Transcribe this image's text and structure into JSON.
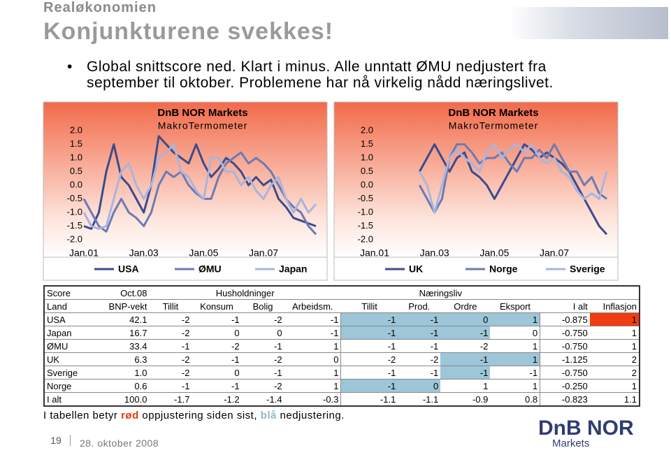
{
  "header": {
    "section": "Realøkonomien",
    "title": "Konjunkturene svekkes!"
  },
  "bullet": "Global snittscore ned. Klart i minus. Alle unntatt ØMU nedjustert fra september til oktober. Problemene har nå virkelig nådd næringslivet.",
  "chart_data": [
    {
      "type": "line",
      "title": "DnB NOR Markets",
      "subtitle": "MakroTermometer",
      "x": [
        "2001-01",
        "2001-04",
        "2001-07",
        "2001-10",
        "2002-01",
        "2002-04",
        "2002-07",
        "2002-10",
        "2003-01",
        "2003-04",
        "2003-07",
        "2003-10",
        "2004-01",
        "2004-04",
        "2004-07",
        "2004-10",
        "2005-01",
        "2005-04",
        "2005-07",
        "2005-10",
        "2006-01",
        "2006-04",
        "2006-07",
        "2006-10",
        "2007-01",
        "2007-04",
        "2007-07",
        "2007-10",
        "2008-01",
        "2008-04",
        "2008-07",
        "2008-10"
      ],
      "xlim": [
        "2001-01",
        "2008-10"
      ],
      "xticks": [
        {
          "value": "2001-01",
          "label": "Jan.01"
        },
        {
          "value": "2003-01",
          "label": "Jan.03"
        },
        {
          "value": "2005-01",
          "label": "Jan.05"
        },
        {
          "value": "2007-01",
          "label": "Jan.07"
        }
      ],
      "ylim": [
        -2,
        2
      ],
      "yticks": [
        {
          "value": -2,
          "label": "-2.0"
        },
        {
          "value": -1.5,
          "label": "-1.5"
        },
        {
          "value": -1,
          "label": "-1.0"
        },
        {
          "value": -0.5,
          "label": "-0.5"
        },
        {
          "value": 0,
          "label": "0.0"
        },
        {
          "value": 0.5,
          "label": "0.5"
        },
        {
          "value": 1,
          "label": "1.0"
        },
        {
          "value": 1.5,
          "label": "1.5"
        },
        {
          "value": 2,
          "label": "2.0"
        }
      ],
      "series": [
        {
          "name": "USA",
          "color": "#3b4c8c",
          "values": [
            -1.5,
            -1.6,
            -1.0,
            0.5,
            1.5,
            0.3,
            0.0,
            -0.5,
            -1.0,
            0.0,
            1.8,
            1.5,
            1.2,
            1.0,
            0.8,
            1.5,
            0.8,
            0.3,
            0.6,
            1.0,
            0.8,
            0.5,
            0.0,
            0.3,
            0.0,
            0.2,
            -0.5,
            -0.8,
            -1.2,
            -1.3,
            -1.4,
            -1.5
          ]
        },
        {
          "name": "ØMU",
          "color": "#6b7bb5",
          "values": [
            -0.5,
            -1.0,
            -1.5,
            -1.7,
            -1.0,
            -0.5,
            -1.0,
            -1.2,
            -1.5,
            -1.0,
            0.0,
            0.5,
            0.3,
            0.5,
            0.0,
            -0.3,
            -0.5,
            -0.5,
            0.3,
            0.8,
            1.0,
            1.2,
            0.8,
            1.0,
            0.8,
            0.5,
            0.0,
            -0.5,
            -0.8,
            -1.0,
            -1.5,
            -1.8
          ]
        },
        {
          "name": "Japan",
          "color": "#aab4dc",
          "values": [
            -1.0,
            -1.5,
            -1.6,
            -1.5,
            -0.5,
            0.5,
            0.8,
            0.0,
            -0.5,
            0.0,
            1.0,
            1.2,
            1.5,
            0.5,
            0.3,
            -0.2,
            -0.5,
            1.0,
            1.0,
            0.5,
            0.5,
            0.0,
            0.3,
            -0.2,
            -0.5,
            0.0,
            0.3,
            -0.5,
            -1.0,
            -0.5,
            -1.0,
            -0.7
          ]
        }
      ]
    },
    {
      "type": "line",
      "title": "DnB NOR Markets",
      "subtitle": "MakroTermometer",
      "x": [
        "2001-01",
        "2001-04",
        "2001-07",
        "2001-10",
        "2002-01",
        "2002-04",
        "2002-07",
        "2002-10",
        "2003-01",
        "2003-04",
        "2003-07",
        "2003-10",
        "2004-01",
        "2004-04",
        "2004-07",
        "2004-10",
        "2005-01",
        "2005-04",
        "2005-07",
        "2005-10",
        "2006-01",
        "2006-04",
        "2006-07",
        "2006-10",
        "2007-01",
        "2007-04",
        "2007-07",
        "2007-10",
        "2008-01",
        "2008-04",
        "2008-07",
        "2008-10"
      ],
      "xlim": [
        "2001-01",
        "2008-10"
      ],
      "xticks": [
        {
          "value": "2001-01",
          "label": "Jan.01"
        },
        {
          "value": "2003-01",
          "label": "Jan.03"
        },
        {
          "value": "2005-01",
          "label": "Jan.05"
        },
        {
          "value": "2007-01",
          "label": "Jan.07"
        }
      ],
      "ylim": [
        -2,
        2
      ],
      "yticks": [
        {
          "value": -2,
          "label": "-2.0"
        },
        {
          "value": -1.5,
          "label": "-1.5"
        },
        {
          "value": -1,
          "label": "-1.0"
        },
        {
          "value": -0.5,
          "label": "-0.5"
        },
        {
          "value": 0,
          "label": "0.0"
        },
        {
          "value": 0.5,
          "label": "0.5"
        },
        {
          "value": 1,
          "label": "1.0"
        },
        {
          "value": 1.5,
          "label": "1.5"
        },
        {
          "value": 2,
          "label": "2.0"
        }
      ],
      "series": [
        {
          "name": "UK",
          "color": "#3b4c8c",
          "values": [
            null,
            null,
            null,
            null,
            null,
            null,
            0.5,
            1.0,
            1.5,
            1.0,
            0.5,
            1.0,
            1.2,
            0.5,
            0.3,
            0.0,
            -0.5,
            0.0,
            0.5,
            1.0,
            1.5,
            1.3,
            1.0,
            1.2,
            1.0,
            0.8,
            0.5,
            0.0,
            -0.5,
            -1.0,
            -1.5,
            -1.8
          ]
        },
        {
          "name": "Norge",
          "color": "#6b7bb5",
          "values": [
            null,
            null,
            null,
            null,
            null,
            null,
            0.0,
            -0.5,
            -1.0,
            -0.5,
            1.0,
            1.5,
            1.5,
            1.2,
            0.8,
            1.0,
            1.0,
            1.2,
            0.8,
            0.5,
            1.0,
            1.0,
            1.3,
            1.0,
            1.5,
            1.0,
            0.5,
            0.5,
            0.0,
            0.3,
            -0.3,
            -0.5
          ]
        },
        {
          "name": "Sverige",
          "color": "#aab4dc",
          "values": [
            null,
            null,
            null,
            null,
            null,
            null,
            0.5,
            0.0,
            -1.0,
            0.0,
            1.0,
            1.3,
            1.0,
            0.8,
            0.5,
            1.2,
            1.5,
            1.0,
            1.3,
            1.5,
            1.2,
            1.5,
            1.0,
            0.8,
            1.0,
            0.5,
            0.3,
            -0.2,
            -0.5,
            -0.3,
            -0.5,
            0.5
          ]
        }
      ]
    }
  ],
  "table": {
    "score_label": "Score",
    "period": "Oct.08",
    "groups": [
      "Husholdninger",
      "Næringsliv"
    ],
    "columns": [
      "Land",
      "BNP-vekt",
      "Tillit",
      "Konsum",
      "Bolig",
      "Arbeidsm.",
      "Tillit",
      "Prod.",
      "Ordre",
      "Eksport",
      "I alt",
      "Inflasjon"
    ],
    "rows": [
      [
        "USA",
        "42.1",
        "-2",
        "-1",
        "-2",
        "-1",
        {
          "text": "-1",
          "color": "#9dc6d8"
        },
        {
          "text": "-1",
          "color": "#9dc6d8"
        },
        {
          "text": "0",
          "color": "#9dc6d8"
        },
        {
          "text": "1",
          "color": "#9dc6d8"
        },
        "-0.875",
        {
          "text": "1",
          "color": "#f03c12"
        }
      ],
      [
        "Japan",
        "16.7",
        "-2",
        "0",
        "0",
        "-1",
        {
          "text": "-1",
          "color": "#9dc6d8"
        },
        {
          "text": "-1",
          "color": "#9dc6d8"
        },
        {
          "text": "-1",
          "color": "#9dc6d8"
        },
        "0",
        "-0.750",
        "1"
      ],
      [
        "ØMU",
        "33.4",
        "-1",
        "-2",
        "-1",
        "1",
        "-1",
        "-1",
        "-2",
        "1",
        "-0.750",
        "1"
      ],
      [
        "UK",
        "6.3",
        "-2",
        "-1",
        "-2",
        "0",
        "-2",
        "-2",
        {
          "text": "-1",
          "color": "#9dc6d8"
        },
        {
          "text": "1",
          "color": "#9dc6d8"
        },
        "-1.125",
        "2"
      ],
      [
        "Sverige",
        "1.0",
        "-2",
        "0",
        "-1",
        "1",
        "-1",
        "-1",
        {
          "text": "-1",
          "color": "#9dc6d8"
        },
        "-1",
        "-0.750",
        "2"
      ],
      [
        "Norge",
        "0.6",
        "-1",
        "-1",
        "-2",
        "1",
        {
          "text": "-1",
          "color": "#9dc6d8"
        },
        {
          "text": "0",
          "color": "#9dc6d8"
        },
        "1",
        "1",
        "-0.250",
        "1"
      ],
      [
        "I alt",
        "100.0",
        "-1.7",
        "-1.2",
        "-1.4",
        "-0.3",
        "-1.1",
        "-1.1",
        "-0.9",
        "0.8",
        "-0.823",
        "1.1"
      ]
    ]
  },
  "footnote": [
    "I tabellen betyr ",
    "rød",
    " oppjustering siden sist, ",
    "blå",
    " nedjustering."
  ],
  "footer": {
    "page": "19",
    "date": "28. oktober 2008",
    "logo": "DnB NOR",
    "logo_sub": "Markets"
  }
}
